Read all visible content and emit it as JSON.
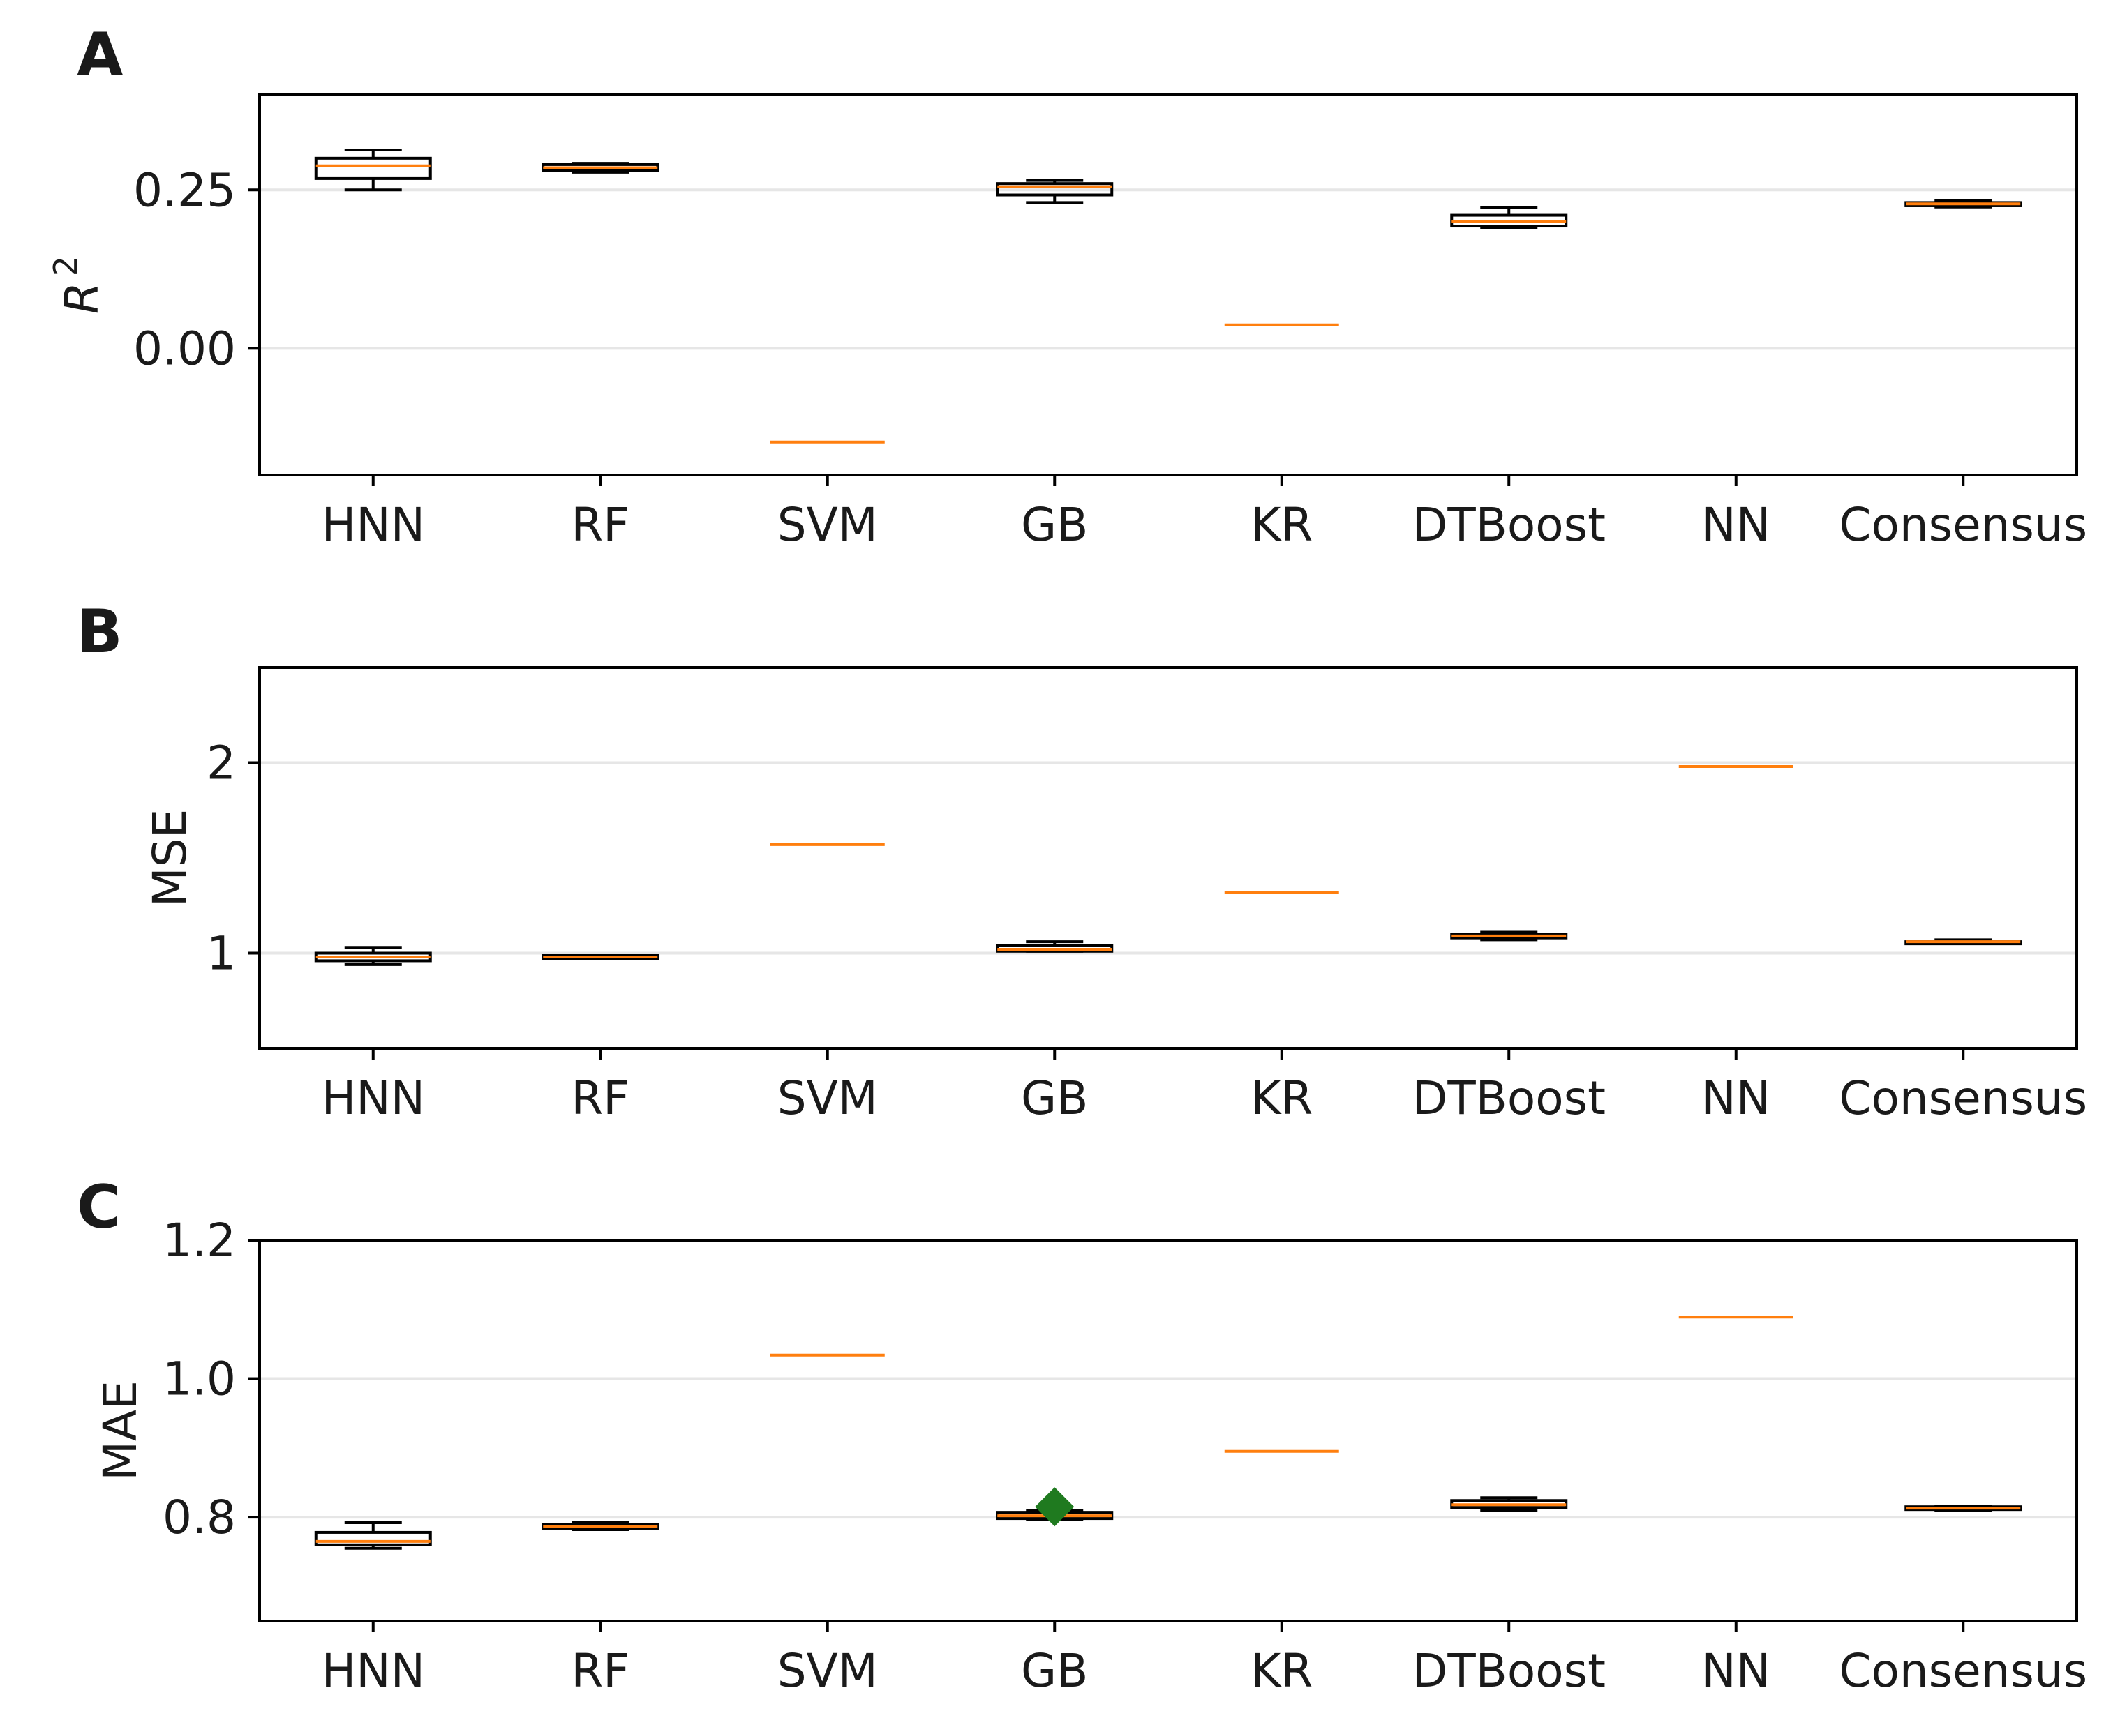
{
  "chart_data": [
    {
      "type": "box",
      "panel_label": "A",
      "ylabel_base": "R",
      "ylabel_sup": "2",
      "yticks": [
        0.0,
        0.25
      ],
      "ytick_labels": [
        "0.00",
        "0.25"
      ],
      "ylim": [
        -0.2,
        0.4
      ],
      "grid": "horizontal",
      "categories": [
        "HNN",
        "RF",
        "SVM",
        "GB",
        "KR",
        "DTBoost",
        "NN",
        "Consensus"
      ],
      "boxes": [
        {
          "category": "HNN",
          "whislo": 0.25,
          "q1": 0.268,
          "med": 0.288,
          "q3": 0.3,
          "whishi": 0.313
        },
        {
          "category": "RF",
          "whislo": 0.278,
          "q1": 0.28,
          "med": 0.285,
          "q3": 0.29,
          "whishi": 0.292
        },
        {
          "category": "SVM",
          "whislo": -0.148,
          "q1": -0.148,
          "med": -0.148,
          "q3": -0.148,
          "whishi": -0.148
        },
        {
          "category": "GB",
          "whislo": 0.23,
          "q1": 0.242,
          "med": 0.255,
          "q3": 0.26,
          "whishi": 0.265
        },
        {
          "category": "KR",
          "whislo": 0.037,
          "q1": 0.037,
          "med": 0.037,
          "q3": 0.037,
          "whishi": 0.037
        },
        {
          "category": "DTBoost",
          "whislo": 0.19,
          "q1": 0.193,
          "med": 0.2,
          "q3": 0.21,
          "whishi": 0.222
        },
        {
          "category": "NN",
          "whislo": null,
          "q1": null,
          "med": null,
          "q3": null,
          "whishi": null
        },
        {
          "category": "Consensus",
          "whislo": 0.223,
          "q1": 0.225,
          "med": 0.228,
          "q3": 0.23,
          "whishi": 0.233
        }
      ],
      "outliers": []
    },
    {
      "type": "box",
      "panel_label": "B",
      "ylabel": "MSE",
      "yticks": [
        1,
        2
      ],
      "ytick_labels": [
        "1",
        "2"
      ],
      "ylim": [
        0.5,
        2.5
      ],
      "grid": "horizontal",
      "categories": [
        "HNN",
        "RF",
        "SVM",
        "GB",
        "KR",
        "DTBoost",
        "NN",
        "Consensus"
      ],
      "boxes": [
        {
          "category": "HNN",
          "whislo": 0.94,
          "q1": 0.96,
          "med": 0.98,
          "q3": 1.0,
          "whishi": 1.03
        },
        {
          "category": "RF",
          "whislo": 0.97,
          "q1": 0.97,
          "med": 0.98,
          "q3": 0.99,
          "whishi": 0.99
        },
        {
          "category": "SVM",
          "whislo": 1.57,
          "q1": 1.57,
          "med": 1.57,
          "q3": 1.57,
          "whishi": 1.57
        },
        {
          "category": "GB",
          "whislo": 1.01,
          "q1": 1.01,
          "med": 1.02,
          "q3": 1.04,
          "whishi": 1.06
        },
        {
          "category": "KR",
          "whislo": 1.32,
          "q1": 1.32,
          "med": 1.32,
          "q3": 1.32,
          "whishi": 1.32
        },
        {
          "category": "DTBoost",
          "whislo": 1.07,
          "q1": 1.08,
          "med": 1.09,
          "q3": 1.1,
          "whishi": 1.11
        },
        {
          "category": "NN",
          "whislo": 1.98,
          "q1": 1.98,
          "med": 1.98,
          "q3": 1.98,
          "whishi": 1.98
        },
        {
          "category": "Consensus",
          "whislo": 1.05,
          "q1": 1.05,
          "med": 1.06,
          "q3": 1.06,
          "whishi": 1.07
        }
      ],
      "outliers": []
    },
    {
      "type": "box",
      "panel_label": "C",
      "ylabel": "MAE",
      "yticks": [
        0.8,
        1.0,
        1.2
      ],
      "ytick_labels": [
        "0.8",
        "1.0",
        "1.2"
      ],
      "ylim": [
        0.65,
        1.2
      ],
      "grid": "horizontal",
      "categories": [
        "HNN",
        "RF",
        "SVM",
        "GB",
        "KR",
        "DTBoost",
        "NN",
        "Consensus"
      ],
      "boxes": [
        {
          "category": "HNN",
          "whislo": 0.755,
          "q1": 0.76,
          "med": 0.765,
          "q3": 0.778,
          "whishi": 0.792
        },
        {
          "category": "RF",
          "whislo": 0.782,
          "q1": 0.784,
          "med": 0.787,
          "q3": 0.79,
          "whishi": 0.792
        },
        {
          "category": "SVM",
          "whislo": 1.034,
          "q1": 1.034,
          "med": 1.034,
          "q3": 1.034,
          "whishi": 1.034
        },
        {
          "category": "GB",
          "whislo": 0.796,
          "q1": 0.798,
          "med": 0.802,
          "q3": 0.807,
          "whishi": 0.81
        },
        {
          "category": "KR",
          "whislo": 0.895,
          "q1": 0.895,
          "med": 0.895,
          "q3": 0.895,
          "whishi": 0.895
        },
        {
          "category": "DTBoost",
          "whislo": 0.81,
          "q1": 0.814,
          "med": 0.818,
          "q3": 0.824,
          "whishi": 0.828
        },
        {
          "category": "NN",
          "whislo": 1.089,
          "q1": 1.089,
          "med": 1.089,
          "q3": 1.089,
          "whishi": 1.089
        },
        {
          "category": "Consensus",
          "whislo": 0.81,
          "q1": 0.811,
          "med": 0.813,
          "q3": 0.815,
          "whishi": 0.816
        }
      ],
      "outliers": [
        {
          "category": "GB",
          "value": 0.815,
          "marker": "diamond",
          "color": "#1f7a1f"
        }
      ]
    }
  ],
  "colors": {
    "box": "#000000",
    "median": "#ff7f0e",
    "grid": "#e6e6e6",
    "outlier": "#1f7a1f"
  }
}
